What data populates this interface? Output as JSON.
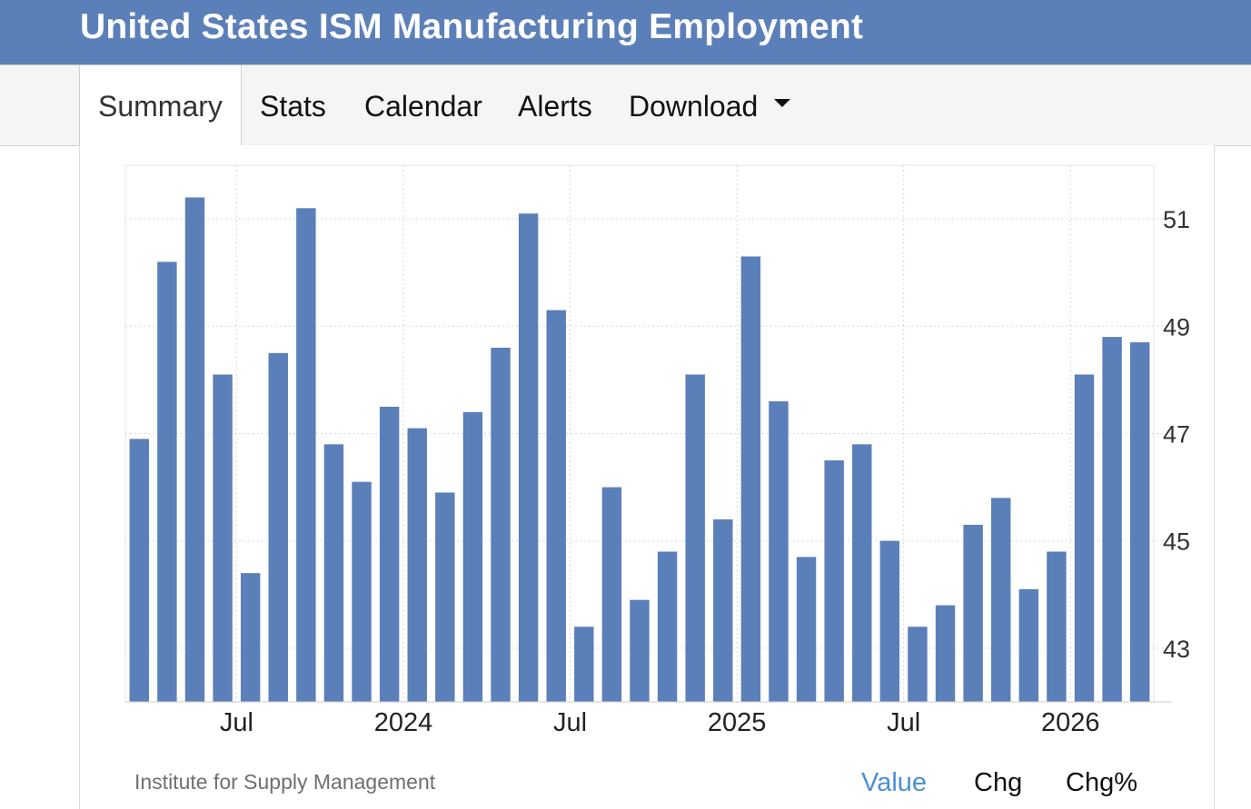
{
  "header": {
    "title": "United States ISM Manufacturing Employment"
  },
  "tabs": [
    {
      "label": "Summary",
      "active": true
    },
    {
      "label": "Stats"
    },
    {
      "label": "Calendar"
    },
    {
      "label": "Alerts"
    },
    {
      "label": "Download",
      "icon": "caret-down-icon"
    }
  ],
  "footer": {
    "source": "Institute for Supply Management",
    "view_tabs": [
      {
        "label": "Value",
        "active": true
      },
      {
        "label": "Chg"
      },
      {
        "label": "Chg%"
      }
    ]
  },
  "colors": {
    "bar": "#5b7fb8",
    "header": "#5b7fb8",
    "active_link": "#4a8fd8"
  },
  "chart_data": {
    "type": "bar",
    "title": "",
    "xlabel": "",
    "ylabel": "",
    "ylim": [
      42,
      52
    ],
    "y_ticks": [
      43,
      45,
      47,
      49,
      51
    ],
    "y_axis_position": "right",
    "grid": true,
    "x_ticks": [
      {
        "label": "Jul",
        "index": 4
      },
      {
        "label": "2024",
        "index": 10
      },
      {
        "label": "Jul",
        "index": 16
      },
      {
        "label": "2025",
        "index": 22
      },
      {
        "label": "Jul",
        "index": 28
      },
      {
        "label": "2026",
        "index": 34
      }
    ],
    "categories": [
      "2023-03",
      "2023-04",
      "2023-05",
      "2023-06",
      "2023-07",
      "2023-08",
      "2023-09",
      "2023-10",
      "2023-11",
      "2023-12",
      "2024-01",
      "2024-02",
      "2024-03",
      "2024-04",
      "2024-05",
      "2024-06",
      "2024-07",
      "2024-08",
      "2024-09",
      "2024-10",
      "2024-11",
      "2024-12",
      "2025-01",
      "2025-02",
      "2025-03",
      "2025-04",
      "2025-05",
      "2025-06",
      "2025-07",
      "2025-08",
      "2025-09",
      "2025-10",
      "2025-11",
      "2025-12",
      "2026-01",
      "2026-02",
      "2026-03"
    ],
    "values": [
      46.9,
      50.2,
      51.4,
      48.1,
      44.4,
      48.5,
      51.2,
      46.8,
      46.1,
      47.5,
      47.1,
      45.9,
      47.4,
      48.6,
      51.1,
      49.3,
      43.4,
      46.0,
      43.9,
      44.8,
      48.1,
      45.4,
      50.3,
      47.6,
      44.7,
      46.5,
      46.8,
      45.0,
      43.4,
      43.8,
      45.3,
      45.8,
      44.1,
      44.8,
      48.1,
      48.8,
      48.7
    ]
  }
}
